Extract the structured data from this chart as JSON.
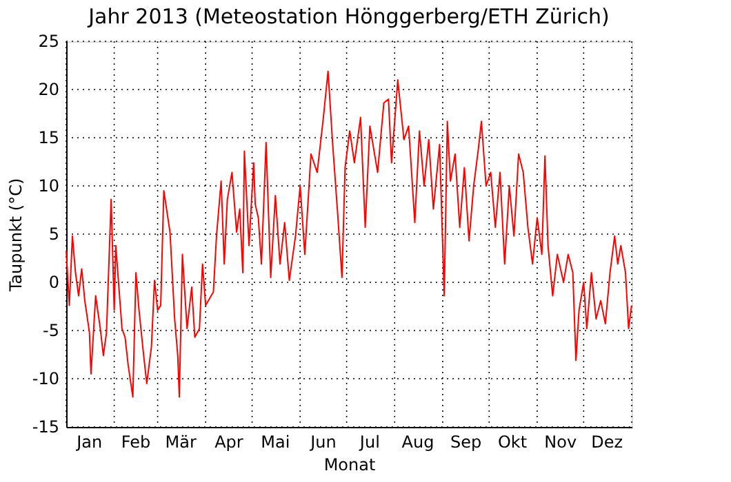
{
  "chart_data": {
    "type": "line",
    "title": "Jahr 2013   (Meteostation Hönggerberg/ETH Zürich)",
    "xlabel": "Monat",
    "ylabel": "Taupunkt (°C)",
    "xlim": [
      "2013-01-01",
      "2014-01-01"
    ],
    "xticks": [
      {
        "value": "2013-01-01",
        "label": null
      },
      {
        "value": "2013-01-16",
        "label": "Jan"
      },
      {
        "value": "2013-02-01",
        "label": null
      },
      {
        "value": "2013-02-15",
        "label": "Feb"
      },
      {
        "value": "2013-03-01",
        "label": null
      },
      {
        "value": "2013-03-16",
        "label": "Mär"
      },
      {
        "value": "2013-04-01",
        "label": null
      },
      {
        "value": "2013-04-16",
        "label": "Apr"
      },
      {
        "value": "2013-05-01",
        "label": null
      },
      {
        "value": "2013-05-16",
        "label": "Mai"
      },
      {
        "value": "2013-06-01",
        "label": null
      },
      {
        "value": "2013-06-16",
        "label": "Jun"
      },
      {
        "value": "2013-07-01",
        "label": null
      },
      {
        "value": "2013-07-16",
        "label": "Jul"
      },
      {
        "value": "2013-08-01",
        "label": null
      },
      {
        "value": "2013-08-16",
        "label": "Aug"
      },
      {
        "value": "2013-09-01",
        "label": null
      },
      {
        "value": "2013-09-16",
        "label": "Sep"
      },
      {
        "value": "2013-10-01",
        "label": null
      },
      {
        "value": "2013-10-16",
        "label": "Okt"
      },
      {
        "value": "2013-11-01",
        "label": null
      },
      {
        "value": "2013-11-16",
        "label": "Nov"
      },
      {
        "value": "2013-12-01",
        "label": null
      },
      {
        "value": "2013-12-16",
        "label": "Dez"
      },
      {
        "value": "2014-01-01",
        "label": null
      }
    ],
    "ylim": [
      -15,
      25
    ],
    "yticks": [
      -15,
      -10,
      -5,
      0,
      5,
      10,
      15,
      20,
      25
    ],
    "grid": true,
    "marker": "none",
    "line_style": "solid",
    "series": [
      {
        "color": "#ff0000",
        "x": [
          "2013-01-01",
          "2013-01-03",
          "2013-01-05",
          "2013-01-07",
          "2013-01-09",
          "2013-01-11",
          "2013-01-13",
          "2013-01-16",
          "2013-01-17",
          "2013-01-20",
          "2013-01-23",
          "2013-01-25",
          "2013-01-27",
          "2013-01-30",
          "2013-02-01",
          "2013-02-02",
          "2013-02-06",
          "2013-02-08",
          "2013-02-10",
          "2013-02-13",
          "2013-02-15",
          "2013-02-17",
          "2013-02-20",
          "2013-02-22",
          "2013-02-25",
          "2013-02-27",
          "2013-03-01",
          "2013-03-03",
          "2013-03-05",
          "2013-03-09",
          "2013-03-12",
          "2013-03-14",
          "2013-03-15",
          "2013-03-17",
          "2013-03-20",
          "2013-03-23",
          "2013-03-25",
          "2013-03-28",
          "2013-03-30",
          "2013-04-01",
          "2013-04-06",
          "2013-04-08",
          "2013-04-11",
          "2013-04-13",
          "2013-04-15",
          "2013-04-18",
          "2013-04-21",
          "2013-04-23",
          "2013-04-25",
          "2013-04-26",
          "2013-04-29",
          "2013-05-02",
          "2013-05-03",
          "2013-05-05",
          "2013-05-07",
          "2013-05-10",
          "2013-05-13",
          "2013-05-16",
          "2013-05-19",
          "2013-05-22",
          "2013-05-25",
          "2013-05-29",
          "2013-06-01",
          "2013-06-04",
          "2013-06-08",
          "2013-06-12",
          "2013-06-16",
          "2013-06-19",
          "2013-06-22",
          "2013-06-25",
          "2013-06-28",
          "2013-06-30",
          "2013-07-03",
          "2013-07-06",
          "2013-07-10",
          "2013-07-13",
          "2013-07-16",
          "2013-07-21",
          "2013-07-25",
          "2013-07-28",
          "2013-07-30",
          "2013-08-03",
          "2013-08-07",
          "2013-08-10",
          "2013-08-14",
          "2013-08-17",
          "2013-08-20",
          "2013-08-23",
          "2013-08-26",
          "2013-08-30",
          "2013-09-02",
          "2013-09-04",
          "2013-09-06",
          "2013-09-09",
          "2013-09-12",
          "2013-09-15",
          "2013-09-18",
          "2013-09-21",
          "2013-09-24",
          "2013-09-26",
          "2013-09-29",
          "2013-10-02",
          "2013-10-05",
          "2013-10-08",
          "2013-10-11",
          "2013-10-14",
          "2013-10-17",
          "2013-10-20",
          "2013-10-23",
          "2013-10-26",
          "2013-10-29",
          "2013-11-01",
          "2013-11-04",
          "2013-11-06",
          "2013-11-08",
          "2013-11-11",
          "2013-11-14",
          "2013-11-18",
          "2013-11-21",
          "2013-11-24",
          "2013-11-26",
          "2013-11-28",
          "2013-12-01",
          "2013-12-03",
          "2013-12-06",
          "2013-12-09",
          "2013-12-12",
          "2013-12-15",
          "2013-12-18",
          "2013-12-21",
          "2013-12-23",
          "2013-12-25",
          "2013-12-28",
          "2013-12-30",
          "2013-12-31T22:00"
        ],
        "values": [
          3.3,
          -2.4,
          4.8,
          1,
          -1.4,
          1.4,
          -1.9,
          -5.2,
          -9.5,
          -1.4,
          -4.8,
          -7.6,
          -5.2,
          8.6,
          -2.9,
          3.8,
          -4.8,
          -5.7,
          -8.6,
          -11.9,
          1,
          -2.9,
          -7.6,
          -10.5,
          -6.7,
          0.2,
          -2.9,
          -2.4,
          9.5,
          5.2,
          -3.8,
          -7.6,
          -11.9,
          2.9,
          -4.8,
          -0.5,
          -5.7,
          -4.8,
          1.9,
          -2.4,
          -1,
          4.8,
          10.5,
          1.9,
          8.6,
          11.4,
          5.2,
          7.6,
          1,
          13.6,
          3.8,
          12.4,
          8.1,
          6.7,
          1.9,
          14.5,
          0.5,
          9,
          1.9,
          6.2,
          0.2,
          4.8,
          10,
          2.9,
          13.3,
          11.4,
          17.1,
          21.9,
          14.3,
          7.6,
          0.5,
          11.9,
          15.7,
          12.4,
          17.1,
          5.7,
          16.2,
          11.4,
          18.6,
          19,
          12.4,
          21,
          14.8,
          16.2,
          6.2,
          15.7,
          10,
          14.8,
          7.6,
          14.3,
          -1.4,
          16.7,
          10.5,
          13.3,
          5.7,
          11.9,
          4.3,
          10,
          13.8,
          16.7,
          10,
          11.4,
          5.7,
          11.4,
          1.9,
          10,
          4.8,
          13.3,
          11.4,
          5.7,
          1.9,
          6.7,
          2.9,
          13.1,
          3.8,
          -1.4,
          2.9,
          0,
          2.9,
          1,
          -8.1,
          -2.9,
          0,
          -4.8,
          1,
          -3.8,
          -1.9,
          -4.3,
          1,
          4.8,
          1.9,
          3.8,
          1,
          -4.8,
          -2.4
        ]
      }
    ]
  }
}
